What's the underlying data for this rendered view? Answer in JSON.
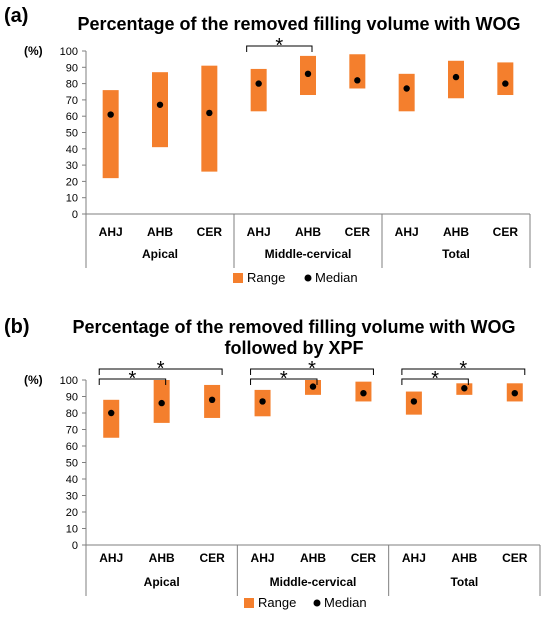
{
  "colors": {
    "range": "#f47f2d",
    "median": "#000000",
    "axis": "#7f7f7f",
    "bracket": "#000000"
  },
  "legend": {
    "range_label": "Range",
    "median_label": "Median"
  },
  "chart_data": [
    {
      "type": "bar",
      "panel_label": "(a)",
      "title_lines": [
        "Percentage of the removed filling volume with WOG"
      ],
      "ylabel": "(%)",
      "ylim": [
        0,
        100
      ],
      "yticks": [
        "0",
        "10",
        "20",
        "30",
        "40",
        "50",
        "60",
        "70",
        "80",
        "90",
        "100"
      ],
      "categories": [
        "AHJ",
        "AHB",
        "CER",
        "AHJ",
        "AHB",
        "CER",
        "AHJ",
        "AHB",
        "CER"
      ],
      "groups": [
        {
          "label": "Apical",
          "start": 0,
          "end": 2
        },
        {
          "label": "Middle-cervical",
          "start": 3,
          "end": 5
        },
        {
          "label": "Total",
          "start": 6,
          "end": 8
        }
      ],
      "series": [
        {
          "name": "Range",
          "kind": "range",
          "low": [
            22,
            41,
            26,
            63,
            73,
            77,
            63,
            71,
            73
          ],
          "high": [
            76,
            87,
            91,
            89,
            97,
            98,
            86,
            94,
            93
          ]
        },
        {
          "name": "Median",
          "kind": "point",
          "values": [
            61,
            67,
            62,
            80,
            86,
            82,
            77,
            84,
            80
          ]
        }
      ],
      "significance": [
        {
          "from": 3,
          "to": 4,
          "level": 1,
          "label": "*"
        }
      ],
      "legend_position": "bottom"
    },
    {
      "type": "bar",
      "panel_label": "(b)",
      "title_lines": [
        "Percentage of the removed filling volume with WOG",
        "followed by XPF"
      ],
      "ylabel": "(%)",
      "ylim": [
        0,
        100
      ],
      "yticks": [
        "0",
        "10",
        "20",
        "30",
        "40",
        "50",
        "60",
        "70",
        "80",
        "90",
        "100"
      ],
      "categories": [
        "AHJ",
        "AHB",
        "CER",
        "AHJ",
        "AHB",
        "CER",
        "AHJ",
        "AHB",
        "CER"
      ],
      "groups": [
        {
          "label": "Apical",
          "start": 0,
          "end": 2
        },
        {
          "label": "Middle-cervical",
          "start": 3,
          "end": 5
        },
        {
          "label": "Total",
          "start": 6,
          "end": 8
        }
      ],
      "series": [
        {
          "name": "Range",
          "kind": "range",
          "low": [
            65,
            74,
            77,
            78,
            91,
            87,
            79,
            91,
            87
          ],
          "high": [
            88,
            100,
            97,
            94,
            100,
            99,
            93,
            98,
            98
          ]
        },
        {
          "name": "Median",
          "kind": "point",
          "values": [
            80,
            86,
            88,
            87,
            96,
            92,
            87,
            95,
            92
          ]
        }
      ],
      "significance": [
        {
          "from": 0,
          "to": 1,
          "level": 1,
          "label": "*"
        },
        {
          "from": 0,
          "to": 2,
          "level": 2,
          "label": "*"
        },
        {
          "from": 3,
          "to": 4,
          "level": 1,
          "label": "*"
        },
        {
          "from": 3,
          "to": 5,
          "level": 2,
          "label": "*"
        },
        {
          "from": 6,
          "to": 7,
          "level": 1,
          "label": "*"
        },
        {
          "from": 6,
          "to": 8,
          "level": 2,
          "label": "*"
        }
      ],
      "legend_position": "bottom"
    }
  ]
}
